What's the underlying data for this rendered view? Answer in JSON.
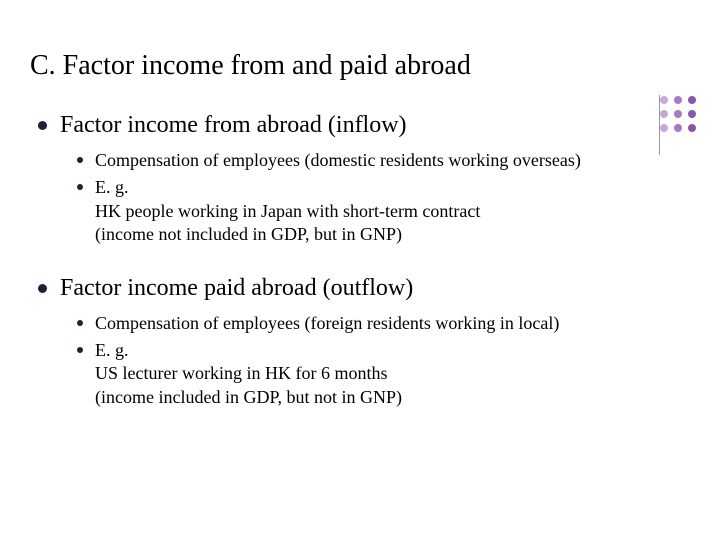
{
  "title": "C. Factor income from and paid abroad",
  "title_fontsize": 28,
  "body_color": "#000000",
  "bullet_color": "#2a1a3a",
  "background_color": "#ffffff",
  "divider_color": "#999999",
  "dot_grid": {
    "rows": 3,
    "cols": 3,
    "colors": [
      "#c9a8d8",
      "#a878c0",
      "#8858a8",
      "#c9a8d8",
      "#a878c0",
      "#8858a8",
      "#c9a8d8",
      "#a878c0",
      "#8858a8"
    ]
  },
  "sections": [
    {
      "heading": "Factor income from abroad (inflow)",
      "heading_fontsize": 24,
      "items": [
        "Compensation of employees (domestic residents working overseas)",
        "E. g.\nHK people working in Japan with short-term contract\n(income not included in GDP, but in GNP)"
      ],
      "item_fontsize": 18
    },
    {
      "heading": "Factor income paid abroad (outflow)",
      "heading_fontsize": 24,
      "items": [
        "Compensation of employees (foreign residents working in local)",
        "E. g.\nUS lecturer working in HK for 6 months\n(income included in GDP, but not in GNP)"
      ],
      "item_fontsize": 18
    }
  ]
}
